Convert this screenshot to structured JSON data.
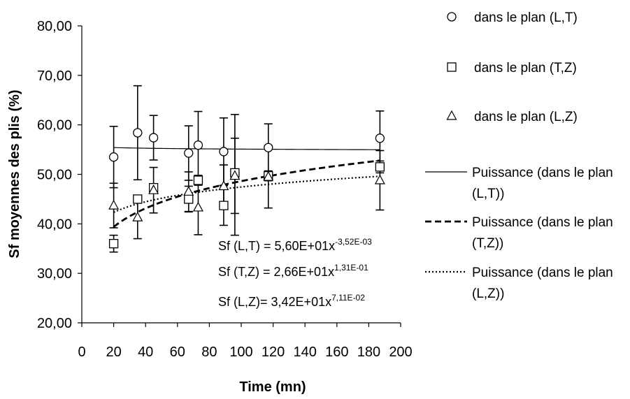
{
  "chart_data": {
    "type": "scatter",
    "xlabel": "Time (mn)",
    "ylabel": "Sf  moyennes des plis (%)",
    "xlim": [
      0,
      200
    ],
    "ylim": [
      20,
      80
    ],
    "x_ticks": [
      "0",
      "20",
      "40",
      "60",
      "80",
      "100",
      "120",
      "140",
      "160",
      "180",
      "200"
    ],
    "y_ticks": [
      "20,00",
      "30,00",
      "40,00",
      "50,00",
      "60,00",
      "70,00",
      "80,00"
    ],
    "grid": false,
    "legend_position": "right",
    "series": [
      {
        "name": "dans le plan (L,T)",
        "marker": "circle",
        "x": [
          20,
          35,
          45,
          67,
          73,
          89,
          96,
          117,
          187
        ],
        "y": [
          53.5,
          58.4,
          57.4,
          54.3,
          55.9,
          54.6,
          49.9,
          55.4,
          57.3
        ],
        "err": [
          6.2,
          9.5,
          4.5,
          5.5,
          6.8,
          6.8,
          12.2,
          4.8,
          5.5
        ]
      },
      {
        "name": "dans le plan (T,Z)",
        "marker": "square",
        "x": [
          20,
          35,
          45,
          67,
          73,
          89,
          96,
          117,
          187
        ],
        "y": [
          36.0,
          45.0,
          47.3,
          45.0,
          48.8,
          43.7,
          50.3,
          49.7,
          51.5
        ],
        "err": [
          1.7,
          0,
          0,
          2.6,
          1.0,
          4.0,
          0,
          1.0,
          1.2
        ]
      },
      {
        "name": "dans le plan (L,Z)",
        "marker": "triangle",
        "x": [
          20,
          35,
          45,
          67,
          73,
          89,
          96,
          117,
          187
        ],
        "y": [
          43.7,
          41.3,
          46.8,
          46.5,
          43.3,
          47.6,
          49.7,
          49.5,
          48.8
        ],
        "err": [
          4.5,
          4.3,
          4.6,
          4.0,
          5.5,
          4.3,
          7.6,
          6.3,
          6.0
        ]
      }
    ],
    "trendlines": [
      {
        "name": "Puissance (dans le plan (L,T))",
        "a": 56.0,
        "b": -0.00352,
        "style": "solid"
      },
      {
        "name": "Puissance (dans le plan (T,Z))",
        "a": 26.6,
        "b": 0.131,
        "style": "dashed"
      },
      {
        "name": "Puissance (dans le plan (L,Z))",
        "a": 34.2,
        "b": 0.0711,
        "style": "dotted"
      }
    ],
    "trend_x_range": [
      20,
      187
    ],
    "annotations": [
      {
        "text": "Sf (L,T) = 5,60E+01x",
        "sup": "-3,52E-03"
      },
      {
        "text": "Sf (T,Z) = 2,66E+01x",
        "sup": "1,31E-01"
      },
      {
        "text": "Sf (L,Z)= 3,42E+01x",
        "sup": "7,11E-02"
      }
    ]
  },
  "legend": {
    "items": [
      {
        "label_lines": [
          "dans le plan (L,T)"
        ],
        "symbol": "circle"
      },
      {
        "label_lines": [
          "dans le plan (T,Z)"
        ],
        "symbol": "square"
      },
      {
        "label_lines": [
          "dans le plan (L,Z)"
        ],
        "symbol": "triangle"
      },
      {
        "label_lines": [
          "Puissance (dans le plan",
          "(L,T))"
        ],
        "symbol": "solid"
      },
      {
        "label_lines": [
          "Puissance (dans le plan",
          "(T,Z))"
        ],
        "symbol": "dashed"
      },
      {
        "label_lines": [
          "Puissance (dans le plan",
          "(L,Z))"
        ],
        "symbol": "dotted"
      }
    ]
  },
  "colors": {
    "ink": "#000000",
    "background": "#ffffff"
  }
}
